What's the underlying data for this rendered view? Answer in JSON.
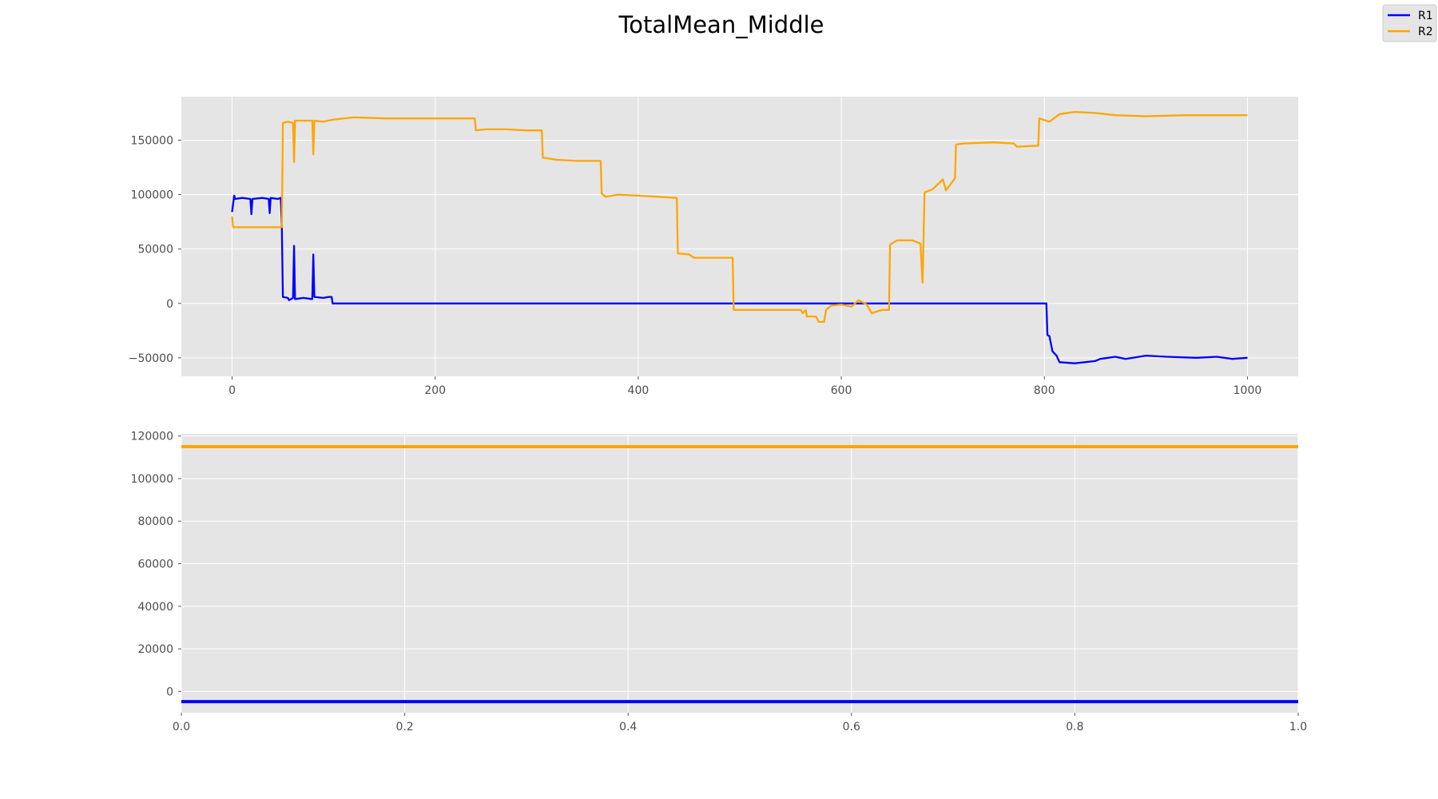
{
  "figure": {
    "title": "TotalMean_Middle"
  },
  "legend": {
    "location": "top-right",
    "entries": [
      {
        "label": "R1",
        "color": "#0000ff"
      },
      {
        "label": "R2",
        "color": "#ffa500"
      }
    ]
  },
  "colors": {
    "plot_background": "#e5e5e5",
    "grid": "#ffffff",
    "tick_text": "#4d4d4d"
  },
  "chart_data": [
    {
      "type": "line",
      "title": "",
      "xlabel": "",
      "ylabel": "",
      "xlim": [
        -50,
        1050
      ],
      "ylim": [
        -67000,
        190000
      ],
      "grid": true,
      "xticks": [
        0,
        200,
        400,
        600,
        800,
        1000
      ],
      "yticks": [
        -50000,
        0,
        50000,
        100000,
        150000
      ],
      "series": [
        {
          "name": "R1",
          "color": "#0000ff",
          "points": [
            [
              0,
              84000
            ],
            [
              2,
              99000
            ],
            [
              3,
              96000
            ],
            [
              10,
              97000
            ],
            [
              18,
              96000
            ],
            [
              19,
              82000
            ],
            [
              20,
              96000
            ],
            [
              30,
              97000
            ],
            [
              36,
              96000
            ],
            [
              37,
              83000
            ],
            [
              38,
              97000
            ],
            [
              45,
              96000
            ],
            [
              48,
              97000
            ],
            [
              49,
              70000
            ],
            [
              50,
              6000
            ],
            [
              55,
              5000
            ],
            [
              56,
              3000
            ],
            [
              60,
              5000
            ],
            [
              61,
              53000
            ],
            [
              62,
              4000
            ],
            [
              70,
              5000
            ],
            [
              79,
              4000
            ],
            [
              80,
              45000
            ],
            [
              81,
              6000
            ],
            [
              90,
              5000
            ],
            [
              95,
              6000
            ],
            [
              98,
              6000
            ],
            [
              99,
              0
            ],
            [
              200,
              0
            ],
            [
              400,
              0
            ],
            [
              600,
              0
            ],
            [
              800,
              0
            ],
            [
              802,
              0
            ],
            [
              803,
              -29000
            ],
            [
              805,
              -30000
            ],
            [
              808,
              -44000
            ],
            [
              812,
              -48000
            ],
            [
              815,
              -54000
            ],
            [
              830,
              -55000
            ],
            [
              850,
              -53000
            ],
            [
              855,
              -51000
            ],
            [
              870,
              -49000
            ],
            [
              880,
              -51000
            ],
            [
              900,
              -48000
            ],
            [
              920,
              -49000
            ],
            [
              950,
              -50000
            ],
            [
              970,
              -49000
            ],
            [
              985,
              -51000
            ],
            [
              1000,
              -50000
            ]
          ]
        },
        {
          "name": "R2",
          "color": "#ffa500",
          "points": [
            [
              0,
              80000
            ],
            [
              1,
              70000
            ],
            [
              20,
              70000
            ],
            [
              49,
              70000
            ],
            [
              50,
              166000
            ],
            [
              55,
              167000
            ],
            [
              60,
              166000
            ],
            [
              61,
              130000
            ],
            [
              62,
              168000
            ],
            [
              70,
              168000
            ],
            [
              79,
              168000
            ],
            [
              80,
              137000
            ],
            [
              81,
              168000
            ],
            [
              90,
              167000
            ],
            [
              100,
              169000
            ],
            [
              120,
              171000
            ],
            [
              150,
              170000
            ],
            [
              180,
              170000
            ],
            [
              200,
              170000
            ],
            [
              239,
              170000
            ],
            [
              240,
              159000
            ],
            [
              250,
              160000
            ],
            [
              270,
              160000
            ],
            [
              290,
              159000
            ],
            [
              305,
              159000
            ],
            [
              306,
              134000
            ],
            [
              320,
              132000
            ],
            [
              340,
              131000
            ],
            [
              363,
              131000
            ],
            [
              364,
              101000
            ],
            [
              368,
              98000
            ],
            [
              380,
              100000
            ],
            [
              400,
              99000
            ],
            [
              420,
              98000
            ],
            [
              438,
              97000
            ],
            [
              439,
              46000
            ],
            [
              450,
              45000
            ],
            [
              455,
              42000
            ],
            [
              480,
              42000
            ],
            [
              493,
              42000
            ],
            [
              494,
              -6000
            ],
            [
              560,
              -6000
            ],
            [
              562,
              -9000
            ],
            [
              565,
              -6000
            ],
            [
              566,
              -12000
            ],
            [
              575,
              -12000
            ],
            [
              578,
              -17000
            ],
            [
              583,
              -17000
            ],
            [
              585,
              -6000
            ],
            [
              590,
              -2000
            ],
            [
              600,
              -1000
            ],
            [
              610,
              -3000
            ],
            [
              617,
              3000
            ],
            [
              625,
              -1000
            ],
            [
              630,
              -9000
            ],
            [
              640,
              -6000
            ],
            [
              647,
              -6000
            ],
            [
              648,
              54000
            ],
            [
              655,
              58000
            ],
            [
              670,
              58000
            ],
            [
              678,
              55000
            ],
            [
              680,
              19000
            ],
            [
              682,
              102000
            ],
            [
              690,
              105000
            ],
            [
              700,
              114000
            ],
            [
              703,
              104000
            ],
            [
              708,
              110000
            ],
            [
              712,
              115000
            ],
            [
              713,
              146000
            ],
            [
              720,
              147000
            ],
            [
              750,
              148000
            ],
            [
              770,
              147000
            ],
            [
              773,
              144000
            ],
            [
              794,
              145000
            ],
            [
              795,
              170000
            ],
            [
              805,
              167000
            ],
            [
              815,
              174000
            ],
            [
              830,
              176000
            ],
            [
              850,
              175000
            ],
            [
              870,
              173000
            ],
            [
              900,
              172000
            ],
            [
              940,
              173000
            ],
            [
              970,
              173000
            ],
            [
              1000,
              173000
            ]
          ]
        }
      ]
    },
    {
      "type": "line",
      "title": "",
      "xlabel": "",
      "ylabel": "",
      "xlim": [
        0,
        1
      ],
      "ylim": [
        -10000,
        121000
      ],
      "grid": true,
      "xticks": [
        0.0,
        0.2,
        0.4,
        0.6,
        0.8,
        1.0
      ],
      "yticks": [
        0,
        20000,
        40000,
        60000,
        80000,
        100000,
        120000
      ],
      "series": [
        {
          "name": "R1",
          "color": "#0000ff",
          "points": [
            [
              0,
              -4800
            ],
            [
              1,
              -4800
            ]
          ]
        },
        {
          "name": "R2",
          "color": "#ffa500",
          "points": [
            [
              0,
              115000
            ],
            [
              1,
              115000
            ]
          ]
        }
      ]
    }
  ]
}
